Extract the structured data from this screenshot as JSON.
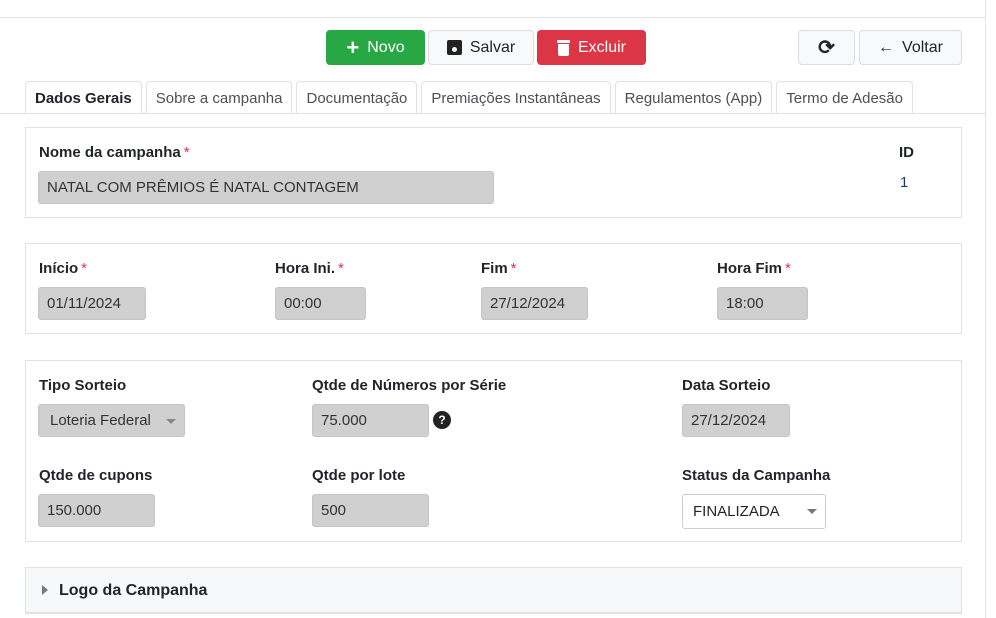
{
  "toolbar": {
    "new": "Novo",
    "save": "Salvar",
    "delete": "Excluir",
    "back": "Voltar"
  },
  "tabs": [
    "Dados Gerais",
    "Sobre a campanha",
    "Documentação",
    "Premiações Instantâneas",
    "Regulamentos (App)",
    "Termo de Adesão"
  ],
  "form": {
    "name_label": "Nome da campanha",
    "name_value": "NATAL COM PRÊMIOS É NATAL CONTAGEM",
    "id_label": "ID",
    "id_value": "1",
    "start_label": "Início",
    "start_value": "01/11/2024",
    "start_time_label": "Hora Ini.",
    "start_time_value": "00:00",
    "end_label": "Fim",
    "end_value": "27/12/2024",
    "end_time_label": "Hora Fim",
    "end_time_value": "18:00",
    "draw_type_label": "Tipo Sorteio",
    "draw_type_value": "Loteria Federal",
    "numbers_label": "Qtde de Números por Série",
    "numbers_value": "75.000",
    "draw_date_label": "Data Sorteio",
    "draw_date_value": "27/12/2024",
    "coupons_label": "Qtde de cupons",
    "coupons_value": "150.000",
    "lot_label": "Qtde por lote",
    "lot_value": "500",
    "status_label": "Status da Campanha",
    "status_value": "FINALIZADA",
    "required_mark": "*"
  },
  "logo_section": "Logo da Campanha"
}
